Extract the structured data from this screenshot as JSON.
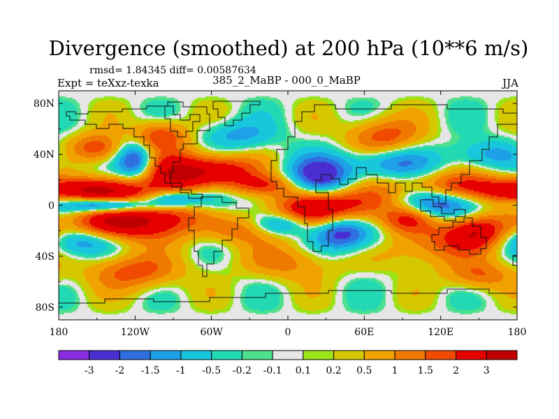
{
  "chart_data": {
    "type": "heatmap",
    "title": "Divergence (smoothed) at 200 hPa (10**6 m/s)",
    "stats_text": "rmsd= 1.84345 diff= 0.00587634",
    "expt_text": "Expt = teXxz-texka",
    "subtitle": "385_2_MaBP - 000_0_MaBP",
    "season": "JJA",
    "x_axis": {
      "range": [
        -180,
        180
      ],
      "ticks": [
        -180,
        -120,
        -60,
        0,
        60,
        120,
        180
      ],
      "tick_labels": [
        "180",
        "120W",
        "60W",
        "0",
        "60E",
        "120E",
        "180"
      ]
    },
    "y_axis": {
      "range": [
        -90,
        90
      ],
      "ticks": [
        80,
        40,
        0,
        -40,
        -80
      ],
      "tick_labels": [
        "80N",
        "40N",
        "0",
        "40S",
        "80S"
      ]
    },
    "colorbar": {
      "levels": [
        "-3",
        "-2",
        "-1.5",
        "-1",
        "-0.5",
        "-0.2",
        "-0.1",
        "0.1",
        "0.2",
        "0.5",
        "1",
        "1.5",
        "2",
        "3"
      ],
      "colors": [
        "#8a2be2",
        "#4b2ed1",
        "#2f6fe0",
        "#1ea0e6",
        "#19c7dc",
        "#22d9b4",
        "#4ee08c",
        "#e6e6e6",
        "#9ce31a",
        "#d6c800",
        "#f0a300",
        "#f07a00",
        "#f04a00",
        "#e60000",
        "#c00000"
      ]
    },
    "features": [
      {
        "lon": -155,
        "lat": 12,
        "value": 3.0,
        "slon": 32,
        "slat": 7
      },
      {
        "lon": -140,
        "lat": -15,
        "value": 2.6,
        "slon": 24,
        "slat": 9
      },
      {
        "lon": -100,
        "lat": -8,
        "value": 2.4,
        "slon": 25,
        "slat": 12
      },
      {
        "lon": -85,
        "lat": 25,
        "value": 2.8,
        "slon": 22,
        "slat": 12
      },
      {
        "lon": -50,
        "lat": 28,
        "value": 2.0,
        "slon": 20,
        "slat": 8
      },
      {
        "lon": -20,
        "lat": 16,
        "value": 1.8,
        "slon": 20,
        "slat": 6
      },
      {
        "lon": 25,
        "lat": -2,
        "value": 3.2,
        "slon": 28,
        "slat": 12
      },
      {
        "lon": 70,
        "lat": 5,
        "value": 2.0,
        "slon": 20,
        "slat": 10
      },
      {
        "lon": 95,
        "lat": -10,
        "value": 2.2,
        "slon": 15,
        "slat": 8
      },
      {
        "lon": 135,
        "lat": 13,
        "value": 2.6,
        "slon": 25,
        "slat": 9
      },
      {
        "lon": 150,
        "lat": -20,
        "value": 2.4,
        "slon": 18,
        "slat": 10
      },
      {
        "lon": 105,
        "lat": -30,
        "value": 1.5,
        "slon": 35,
        "slat": 12
      },
      {
        "lon": 0,
        "lat": -45,
        "value": 1.2,
        "slon": 25,
        "slat": 10
      },
      {
        "lon": -150,
        "lat": 45,
        "value": 2.0,
        "slon": 15,
        "slat": 8
      },
      {
        "lon": -100,
        "lat": 55,
        "value": 2.0,
        "slon": 15,
        "slat": 8
      },
      {
        "lon": 150,
        "lat": -55,
        "value": 1.5,
        "slon": 18,
        "slat": 8
      },
      {
        "lon": -120,
        "lat": -52,
        "value": 1.8,
        "slon": 25,
        "slat": 10
      },
      {
        "lon": 75,
        "lat": 55,
        "value": 1.8,
        "slon": 20,
        "slat": 10
      },
      {
        "lon": -40,
        "lat": -20,
        "value": 1.2,
        "slon": 20,
        "slat": 8
      },
      {
        "lon": 25,
        "lat": 20,
        "value": -3.0,
        "slon": 18,
        "slat": 12
      },
      {
        "lon": -140,
        "lat": 0,
        "value": -3.2,
        "slon": 25,
        "slat": 4
      },
      {
        "lon": -90,
        "lat": 5,
        "value": -2.4,
        "slon": 15,
        "slat": 5
      },
      {
        "lon": 110,
        "lat": 2,
        "value": -3.2,
        "slon": 25,
        "slat": 9
      },
      {
        "lon": -120,
        "lat": 35,
        "value": -2.6,
        "slon": 10,
        "slat": 10
      },
      {
        "lon": -5,
        "lat": -15,
        "value": -2.0,
        "slon": 15,
        "slat": 6
      },
      {
        "lon": 40,
        "lat": -20,
        "value": -2.2,
        "slon": 15,
        "slat": 10
      },
      {
        "lon": -165,
        "lat": -28,
        "value": -1.8,
        "slon": 18,
        "slat": 8
      },
      {
        "lon": 80,
        "lat": 33,
        "value": -1.5,
        "slon": 25,
        "slat": 8
      },
      {
        "lon": -60,
        "lat": 5,
        "value": -1.5,
        "slon": 15,
        "slat": 8
      },
      {
        "lon": 60,
        "lat": -25,
        "value": -1.5,
        "slon": 20,
        "slat": 10
      },
      {
        "lon": 155,
        "lat": 40,
        "value": -1.2,
        "slon": 20,
        "slat": 8
      },
      {
        "lon": -40,
        "lat": 55,
        "value": -1.2,
        "slon": 20,
        "slat": 8
      }
    ]
  }
}
